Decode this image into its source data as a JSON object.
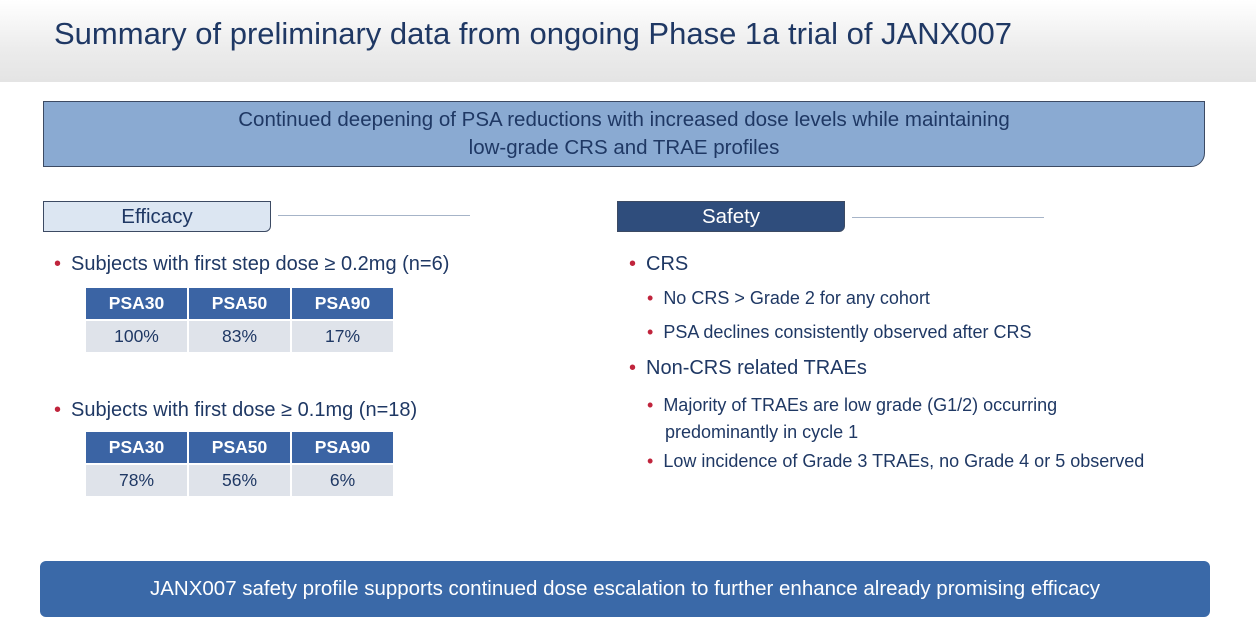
{
  "title": "Summary of preliminary data from ongoing Phase 1a trial of JANX007",
  "headline": {
    "line1": "Continued deepening of PSA reductions with increased dose levels while maintaining",
    "line2": "low-grade CRS and TRAE profiles"
  },
  "efficacy": {
    "label": "Efficacy",
    "groups": [
      {
        "bullet": "Subjects with first step dose ≥ 0.2mg (n=6)",
        "headers": [
          "PSA30",
          "PSA50",
          "PSA90"
        ],
        "values": [
          "100%",
          "83%",
          "17%"
        ]
      },
      {
        "bullet": "Subjects with first dose ≥ 0.1mg (n=18)",
        "headers": [
          "PSA30",
          "PSA50",
          "PSA90"
        ],
        "values": [
          "78%",
          "56%",
          "6%"
        ]
      }
    ]
  },
  "safety": {
    "label": "Safety",
    "items": [
      {
        "text": "CRS",
        "sub": [
          {
            "line1": "No CRS > Grade 2 for any cohort"
          },
          {
            "line1": "PSA declines consistently observed after CRS"
          }
        ]
      },
      {
        "text": "Non-CRS related TRAEs",
        "sub": [
          {
            "line1": "Majority of TRAEs are low grade (G1/2) occurring",
            "line2": "predominantly in cycle 1"
          },
          {
            "line1": "Low incidence of Grade 3 TRAEs, no Grade 4 or 5 observed"
          }
        ]
      }
    ]
  },
  "bullet_glyph": "•",
  "conclusion": "JANX007 safety profile supports continued dose escalation to further enhance already promising efficacy"
}
